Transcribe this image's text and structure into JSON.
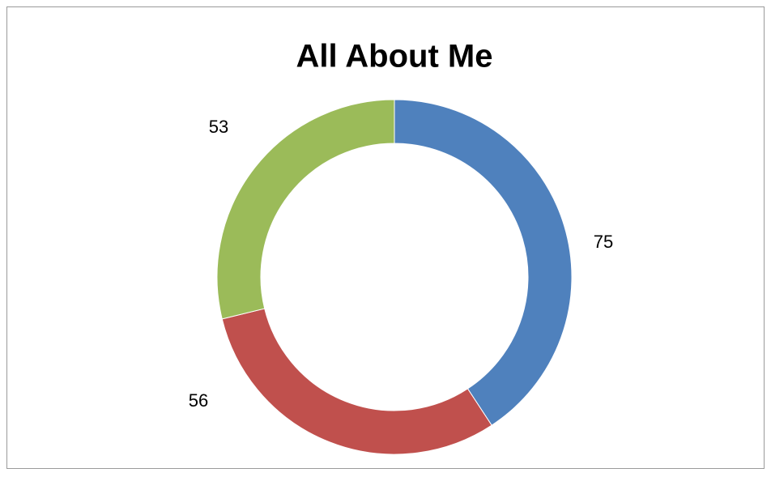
{
  "chart_data": {
    "type": "donut",
    "title": "All About Me",
    "categories": [
      null,
      null,
      null
    ],
    "values": [
      75,
      56,
      53
    ],
    "colors": [
      "#4f81bd",
      "#c0504d",
      "#9bbb59"
    ]
  }
}
